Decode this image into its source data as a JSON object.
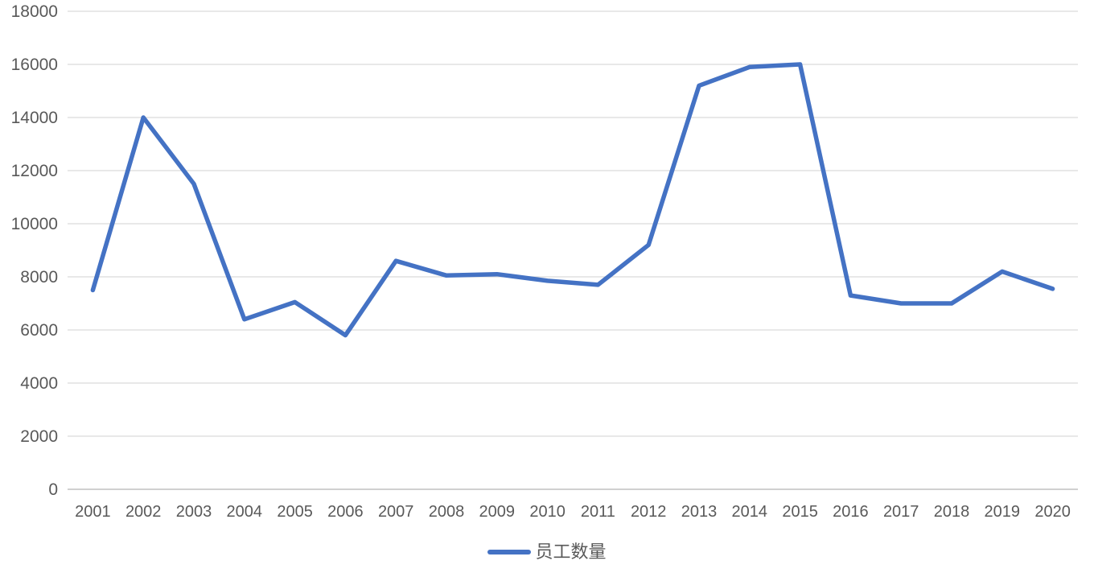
{
  "chart_data": {
    "type": "line",
    "title": "",
    "categories": [
      "2001",
      "2002",
      "2003",
      "2004",
      "2005",
      "2006",
      "2007",
      "2008",
      "2009",
      "2010",
      "2011",
      "2012",
      "2013",
      "2014",
      "2015",
      "2016",
      "2017",
      "2018",
      "2019",
      "2020"
    ],
    "series": [
      {
        "name": "员工数量",
        "values": [
          7500,
          14000,
          11500,
          6400,
          7050,
          5800,
          8600,
          8050,
          8100,
          7850,
          7700,
          9200,
          15200,
          15900,
          16000,
          7300,
          7000,
          7000,
          8200,
          7550
        ]
      }
    ],
    "xlabel": "",
    "ylabel": "",
    "ylim": [
      0,
      18000
    ],
    "ytick_interval": 2000,
    "yticks": [
      0,
      2000,
      4000,
      6000,
      8000,
      10000,
      12000,
      14000,
      16000,
      18000
    ],
    "grid": true,
    "legend_position": "bottom",
    "colors": {
      "series_line": "#4472C4",
      "gridline": "#D9D9D9",
      "axis_line": "#C0C0C0",
      "tick_label": "#595959",
      "background": "#FFFFFF"
    }
  },
  "legend": {
    "label": "员工数量"
  }
}
